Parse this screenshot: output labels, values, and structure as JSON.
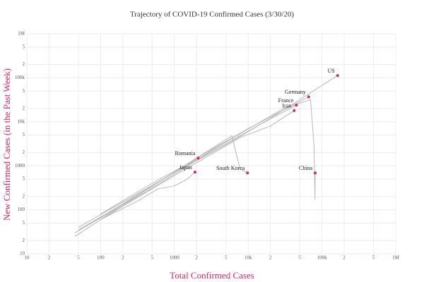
{
  "chart_data": {
    "type": "line",
    "title": "Trajectory of COVID-19 Confirmed Cases (3/30/20)",
    "x_label": "Total Confirmed Cases",
    "y_label": "New Confirmed Cases (in the Past Week)",
    "xscale": "log",
    "yscale": "log",
    "grid": true,
    "line_color": "#b8b8b8",
    "point_color": "#e0245e",
    "label_color": "#e0245e",
    "xlim": [
      10,
      1000000
    ],
    "ylim": [
      10,
      1000000
    ],
    "xticks": [
      10,
      {
        "value": 20,
        "label": "2"
      },
      {
        "value": 50,
        "label": "5"
      },
      100,
      {
        "value": 200,
        "label": "2"
      },
      {
        "value": 500,
        "label": "5"
      },
      1000,
      {
        "value": 2000,
        "label": "2"
      },
      {
        "value": 5000,
        "label": "5"
      },
      {
        "value": 10000,
        "label": "10k"
      },
      {
        "value": 20000,
        "label": "2"
      },
      {
        "value": 50000,
        "label": "5"
      },
      {
        "value": 100000,
        "label": "100k"
      },
      {
        "value": 200000,
        "label": "2"
      },
      {
        "value": 500000,
        "label": "5"
      },
      {
        "value": 1000000,
        "label": "1M"
      }
    ],
    "yticks": [
      10,
      {
        "value": 20,
        "label": "2"
      },
      {
        "value": 50,
        "label": "5"
      },
      100,
      {
        "value": 200,
        "label": "2"
      },
      {
        "value": 500,
        "label": "5"
      },
      1000,
      {
        "value": 2000,
        "label": "2"
      },
      {
        "value": 5000,
        "label": "5"
      },
      {
        "value": 10000,
        "label": "10k"
      },
      {
        "value": 20000,
        "label": "2"
      },
      {
        "value": 50000,
        "label": "5"
      },
      {
        "value": 100000,
        "label": "100k"
      },
      {
        "value": 200000,
        "label": "2"
      },
      {
        "value": 500000,
        "label": "5"
      },
      {
        "value": 1000000,
        "label": "1M"
      }
    ],
    "series": [
      {
        "name": "US",
        "x": [
          50,
          200,
          1000,
          5000,
          20000,
          163000
        ],
        "values": [
          40,
          150,
          700,
          3000,
          12000,
          113000
        ]
      },
      {
        "name": "Germany",
        "x": [
          50,
          300,
          2000,
          10000,
          66000
        ],
        "values": [
          35,
          200,
          1500,
          7000,
          37000
        ]
      },
      {
        "name": "France",
        "x": [
          60,
          400,
          3000,
          15000,
          45000
        ],
        "values": [
          40,
          250,
          2000,
          9000,
          24000
        ]
      },
      {
        "name": "Iran",
        "x": [
          100,
          1000,
          8000,
          20000,
          42000
        ],
        "values": [
          60,
          600,
          4500,
          8000,
          18000
        ]
      },
      {
        "name": "China",
        "x": [
          45,
          500,
          5000,
          30000,
          70000,
          78000,
          80500,
          81000
        ],
        "values": [
          30,
          350,
          3500,
          20000,
          32000,
          3000,
          170,
          690
        ]
      },
      {
        "name": "South Korea",
        "x": [
          45,
          300,
          2000,
          6000,
          7800,
          9800
        ],
        "values": [
          25,
          200,
          1500,
          4800,
          840,
          690
        ]
      },
      {
        "name": "Romania",
        "x": [
          100,
          500,
          2100
        ],
        "values": [
          80,
          400,
          1500
        ]
      },
      {
        "name": "Japan",
        "x": [
          100,
          300,
          600,
          1000,
          1500,
          1900
        ],
        "values": [
          60,
          150,
          300,
          350,
          500,
          720
        ]
      }
    ]
  }
}
